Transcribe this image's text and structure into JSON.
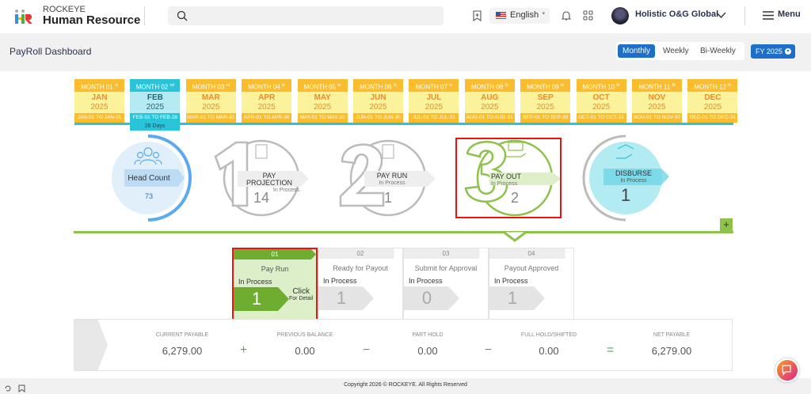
{
  "header": {
    "brand_small": "ROCKEYE",
    "brand_big": "Human Resource",
    "search_placeholder": "",
    "language": "English",
    "user_name": "Holistic O&G Global",
    "menu_label": "Menu"
  },
  "page": {
    "title": "PayRoll Dashboard",
    "period_tabs": [
      "Monthly",
      "Weekly",
      "Bi-Weekly"
    ],
    "active_period": "Monthly",
    "fiscal_year": "FY 2025"
  },
  "months": [
    {
      "label": "MONTH 01",
      "sup": "st",
      "name": "JAN",
      "year": "2025",
      "range": "JAN-01 TO JAN-31"
    },
    {
      "label": "MONTH 02",
      "sup": "nd",
      "name": "FEB",
      "year": "2025",
      "range": "FEB-01 TO FEB-28",
      "active": true
    },
    {
      "label": "MONTH 03",
      "sup": "rd",
      "name": "MAR",
      "year": "2025",
      "range": "MAR-01 TO MAR-31"
    },
    {
      "label": "MONTH 04",
      "sup": "th",
      "name": "APR",
      "year": "2025",
      "range": "APR-01 TO APR-30"
    },
    {
      "label": "MONTH 05",
      "sup": "th",
      "name": "MAY",
      "year": "2025",
      "range": "MAY-01 TO MAY-31"
    },
    {
      "label": "MONTH 06",
      "sup": "th",
      "name": "JUN",
      "year": "2025",
      "range": "JUN-01 TO JUN-30"
    },
    {
      "label": "MONTH 07",
      "sup": "th",
      "name": "JUL",
      "year": "2025",
      "range": "JUL-01 TO JUL-31"
    },
    {
      "label": "MONTH 08",
      "sup": "th",
      "name": "AUG",
      "year": "2025",
      "range": "AUG-01 TO AUG-31"
    },
    {
      "label": "MONTH 09",
      "sup": "th",
      "name": "SEP",
      "year": "2025",
      "range": "SEP-01 TO SEP-30"
    },
    {
      "label": "MONTH 10",
      "sup": "th",
      "name": "OCT",
      "year": "2025",
      "range": "OCT-01 TO OCT-31"
    },
    {
      "label": "MONTH 11",
      "sup": "th",
      "name": "NOV",
      "year": "2025",
      "range": "NOV-01 TO NOV-30"
    },
    {
      "label": "MONTH 12",
      "sup": "th",
      "name": "DEC",
      "year": "2025",
      "range": "DEC-01 TO DEC-31"
    }
  ],
  "active_month_days": "28 Days",
  "pipeline": {
    "head_count": {
      "label": "Head Count",
      "value": "73"
    },
    "steps": [
      {
        "step": "1",
        "label": "PAY PROJECTION",
        "status": "In Process",
        "value": "14"
      },
      {
        "step": "2",
        "label": "PAY RUN",
        "status": "In Process",
        "value": "1"
      },
      {
        "step": "3",
        "label": "PAY OUT",
        "status": "In Process",
        "value": "2",
        "active": true
      },
      {
        "label": "DISBURSE",
        "status": "In Process",
        "value": "1"
      }
    ],
    "expand": "+"
  },
  "stages": [
    {
      "num": "01",
      "name": "Pay Run",
      "status": "In Process",
      "value": "1",
      "active": true,
      "cta": "Click",
      "cta_sub": "For Detail"
    },
    {
      "num": "02",
      "name": "Ready for Payout",
      "status": "In Process",
      "value": "1"
    },
    {
      "num": "03",
      "name": "Submit for Approval",
      "status": "In Process",
      "value": "0"
    },
    {
      "num": "04",
      "name": "Payout Approved",
      "status": "In Process",
      "value": "1"
    }
  ],
  "summary": {
    "items": [
      {
        "label": "CURRENT PAYABLE",
        "value": "6,279.00"
      },
      {
        "label": "PREVIOUS BALANCE",
        "value": "0.00"
      },
      {
        "label": "PART HOLD",
        "value": "0.00"
      },
      {
        "label": "FULL HOLD/SHIFTED",
        "value": "0.00"
      },
      {
        "label": "NET PAYABLE",
        "value": "6,279.00"
      }
    ],
    "operators": [
      "+",
      "−",
      "−",
      "="
    ]
  },
  "footer": {
    "copyright": "Copyright 2026 © ROCKEYE. All Rights Reserved"
  },
  "colors": {
    "primary": "#1d6fc9",
    "month": "#fbbd2e",
    "active_month": "#29c4da",
    "green": "#8dc34a"
  }
}
